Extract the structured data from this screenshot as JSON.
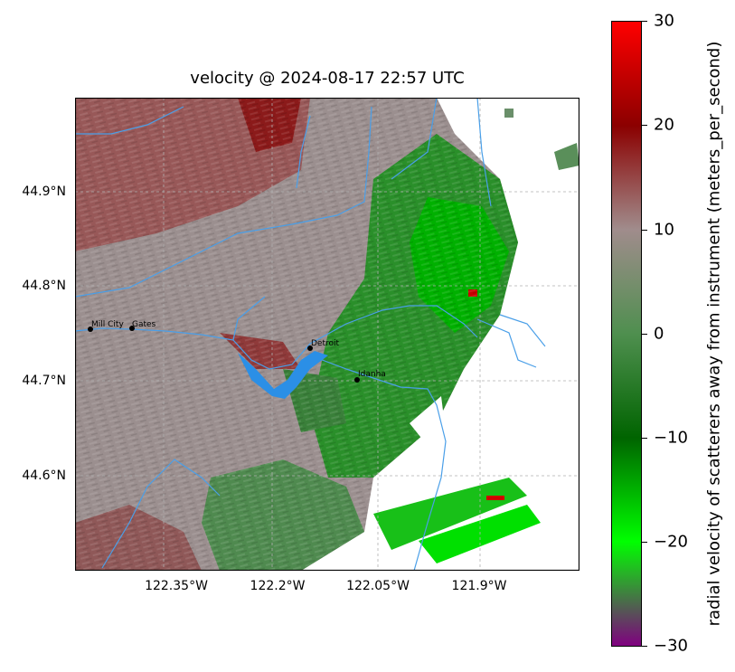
{
  "title": "velocity @ 2024-08-17 22:57 UTC",
  "latitude_labels": [
    "44.9°N",
    "44.8°N",
    "44.7°N",
    "44.6°N"
  ],
  "longitude_labels": [
    "122.35°W",
    "122.2°W",
    "122.05°W",
    "121.9°W"
  ],
  "places": [
    {
      "name": "Mill City"
    },
    {
      "name": "Gates"
    },
    {
      "name": "Detroit"
    },
    {
      "name": "Idanha"
    }
  ],
  "colorbar": {
    "label": "radial velocity of scatterers away from instrument (meters_per_second)",
    "range": [
      -30,
      30
    ],
    "tick_labels": [
      "30",
      "20",
      "10",
      "0",
      "−10",
      "−20",
      "−30"
    ],
    "colors": [
      "#ff0000",
      "#8b0000",
      "#a08c8c",
      "#4f8f4f",
      "#006400",
      "#00ff00",
      "#800080"
    ]
  },
  "colors": {
    "river": "#4a9fe8",
    "lake": "#2b8fe6",
    "gridline": "#b0b0b0"
  }
}
